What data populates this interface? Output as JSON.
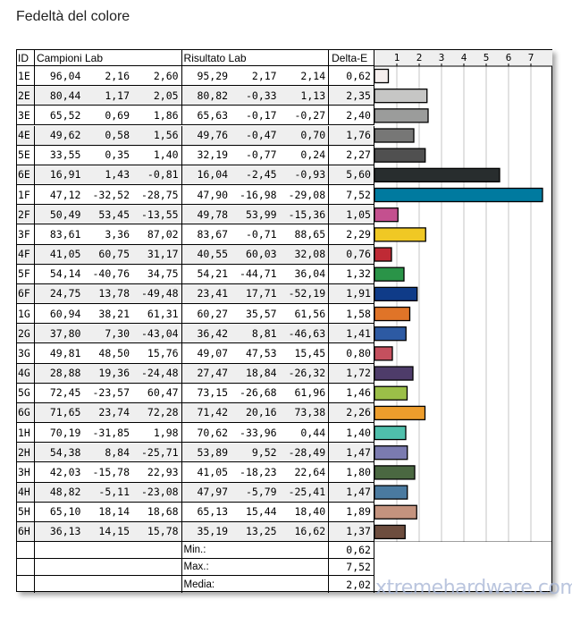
{
  "title": "Fedeltà del colore",
  "headers": {
    "id": "ID",
    "samples": "Campioni Lab",
    "results": "Risultato Lab",
    "delta": "Delta-E"
  },
  "rows": [
    {
      "id": "1E",
      "s": [
        "96,04",
        "2,16",
        "2,60"
      ],
      "r": [
        "95,29",
        "2,17",
        "2,14"
      ],
      "de": "0,62",
      "color": "#f6efee"
    },
    {
      "id": "2E",
      "s": [
        "80,44",
        "1,17",
        "2,05"
      ],
      "r": [
        "80,82",
        "-0,33",
        "1,13"
      ],
      "de": "2,35",
      "color": "#c6c6c5"
    },
    {
      "id": "3E",
      "s": [
        "65,52",
        "0,69",
        "1,86"
      ],
      "r": [
        "65,63",
        "-0,17",
        "-0,27"
      ],
      "de": "2,40",
      "color": "#9b9c9b"
    },
    {
      "id": "4E",
      "s": [
        "49,62",
        "0,58",
        "1,56"
      ],
      "r": [
        "49,76",
        "-0,47",
        "0,70"
      ],
      "de": "1,76",
      "color": "#777776"
    },
    {
      "id": "5E",
      "s": [
        "33,55",
        "0,35",
        "1,40"
      ],
      "r": [
        "32,19",
        "-0,77",
        "0,24"
      ],
      "de": "2,27",
      "color": "#505050"
    },
    {
      "id": "6E",
      "s": [
        "16,91",
        "1,43",
        "-0,81"
      ],
      "r": [
        "16,04",
        "-2,45",
        "-0,93"
      ],
      "de": "5,60",
      "color": "#282d2e"
    },
    {
      "id": "1F",
      "s": [
        "47,12",
        "-32,52",
        "-28,75"
      ],
      "r": [
        "47,90",
        "-16,98",
        "-29,08"
      ],
      "de": "7,52",
      "color": "#007a9f"
    },
    {
      "id": "2F",
      "s": [
        "50,49",
        "53,45",
        "-13,55"
      ],
      "r": [
        "49,78",
        "53,99",
        "-15,36"
      ],
      "de": "1,05",
      "color": "#c4508f"
    },
    {
      "id": "3F",
      "s": [
        "83,61",
        "3,36",
        "87,02"
      ],
      "r": [
        "83,67",
        "-0,71",
        "88,65"
      ],
      "de": "2,29",
      "color": "#f0c824"
    },
    {
      "id": "4F",
      "s": [
        "41,05",
        "60,75",
        "31,17"
      ],
      "r": [
        "40,55",
        "60,03",
        "32,08"
      ],
      "de": "0,76",
      "color": "#bf2a35"
    },
    {
      "id": "5F",
      "s": [
        "54,14",
        "-40,76",
        "34,75"
      ],
      "r": [
        "54,21",
        "-44,71",
        "36,04"
      ],
      "de": "1,32",
      "color": "#2a9448"
    },
    {
      "id": "6F",
      "s": [
        "24,75",
        "13,78",
        "-49,48"
      ],
      "r": [
        "23,41",
        "17,71",
        "-52,19"
      ],
      "de": "1,91",
      "color": "#0f3b88"
    },
    {
      "id": "1G",
      "s": [
        "60,94",
        "38,21",
        "61,31"
      ],
      "r": [
        "60,27",
        "35,57",
        "61,56"
      ],
      "de": "1,58",
      "color": "#e07428"
    },
    {
      "id": "2G",
      "s": [
        "37,80",
        "7,30",
        "-43,04"
      ],
      "r": [
        "36,42",
        "8,81",
        "-46,63"
      ],
      "de": "1,41",
      "color": "#2d5aa3"
    },
    {
      "id": "3G",
      "s": [
        "49,81",
        "48,50",
        "15,76"
      ],
      "r": [
        "49,07",
        "47,53",
        "15,45"
      ],
      "de": "0,80",
      "color": "#c5505e"
    },
    {
      "id": "4G",
      "s": [
        "28,88",
        "19,36",
        "-24,48"
      ],
      "r": [
        "27,47",
        "18,84",
        "-26,32"
      ],
      "de": "1,72",
      "color": "#4e3c6a"
    },
    {
      "id": "5G",
      "s": [
        "72,45",
        "-23,57",
        "60,47"
      ],
      "r": [
        "73,15",
        "-26,68",
        "61,96"
      ],
      "de": "1,46",
      "color": "#9bbf48"
    },
    {
      "id": "6G",
      "s": [
        "71,65",
        "23,74",
        "72,28"
      ],
      "r": [
        "71,42",
        "20,16",
        "73,38"
      ],
      "de": "2,26",
      "color": "#ed9d2c"
    },
    {
      "id": "1H",
      "s": [
        "70,19",
        "-31,85",
        "1,98"
      ],
      "r": [
        "70,62",
        "-33,96",
        "0,44"
      ],
      "de": "1,40",
      "color": "#4fbfac"
    },
    {
      "id": "2H",
      "s": [
        "54,38",
        "8,84",
        "-25,71"
      ],
      "r": [
        "53,89",
        "9,52",
        "-28,49"
      ],
      "de": "1,47",
      "color": "#7b7bb0"
    },
    {
      "id": "3H",
      "s": [
        "42,03",
        "-15,78",
        "22,93"
      ],
      "r": [
        "41,05",
        "-18,23",
        "22,64"
      ],
      "de": "1,80",
      "color": "#4a6841"
    },
    {
      "id": "4H",
      "s": [
        "48,82",
        "-5,11",
        "-23,08"
      ],
      "r": [
        "47,97",
        "-5,79",
        "-25,41"
      ],
      "de": "1,47",
      "color": "#4a7aa0"
    },
    {
      "id": "5H",
      "s": [
        "65,10",
        "18,14",
        "18,68"
      ],
      "r": [
        "65,13",
        "15,44",
        "18,40"
      ],
      "de": "1,89",
      "color": "#c4937e"
    },
    {
      "id": "6H",
      "s": [
        "36,13",
        "14,15",
        "15,78"
      ],
      "r": [
        "35,19",
        "13,25",
        "16,62"
      ],
      "de": "1,37",
      "color": "#6d4d3e"
    }
  ],
  "summary": [
    {
      "label": "Min.:",
      "value": "0,62"
    },
    {
      "label": "Max.:",
      "value": "7,52"
    },
    {
      "label": "Media:",
      "value": "2,02"
    }
  ],
  "watermark": "xtremehardware.com",
  "chart_data": {
    "type": "bar",
    "orientation": "horizontal",
    "categories": [
      "1E",
      "2E",
      "3E",
      "4E",
      "5E",
      "6E",
      "1F",
      "2F",
      "3F",
      "4F",
      "5F",
      "6F",
      "1G",
      "2G",
      "3G",
      "4G",
      "5G",
      "6G",
      "1H",
      "2H",
      "3H",
      "4H",
      "5H",
      "6H"
    ],
    "values": [
      0.62,
      2.35,
      2.4,
      1.76,
      2.27,
      5.6,
      7.52,
      1.05,
      2.29,
      0.76,
      1.32,
      1.91,
      1.58,
      1.41,
      0.8,
      1.72,
      1.46,
      2.26,
      1.4,
      1.47,
      1.8,
      1.47,
      1.89,
      1.37
    ],
    "xticks": [
      1,
      2,
      3,
      4,
      5,
      6,
      7
    ],
    "xlim": [
      0,
      8
    ],
    "grid": true
  }
}
